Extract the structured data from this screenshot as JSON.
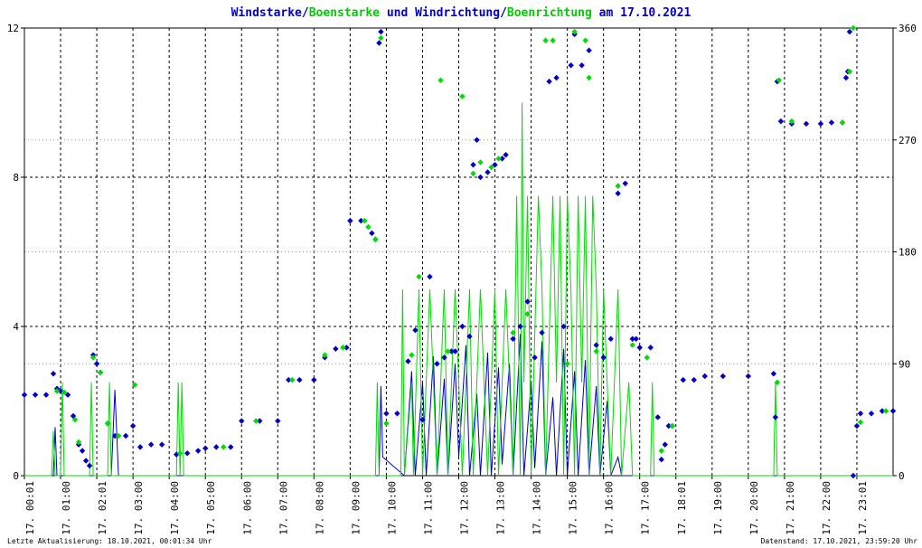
{
  "title_parts": {
    "p1": "Windstarke",
    "p2": "/",
    "p3": "Boenstarke",
    "p4": " und ",
    "p5": "Windrichtung",
    "p6": "/",
    "p7": "Boenrichtung",
    "p8": " am 17.10.2021"
  },
  "footer": {
    "left": "Letzte Aktualisierung: 18.10.2021, 00:01:34 Uhr",
    "right": "Datenstand: 17.10.2021, 23:59:20 Uhr"
  },
  "colors": {
    "wind": "#0000cc",
    "gust": "#00dd00",
    "grid": "#000000"
  },
  "chart_data": {
    "type": "line",
    "x_unit": "hour of day",
    "xlim": [
      0,
      24
    ],
    "x_tick_labels": [
      "17. 00:01",
      "17. 01:00",
      "17. 02:01",
      "17. 03:00",
      "17. 04:00",
      "17. 05:00",
      "17. 06:00",
      "17. 07:00",
      "17. 08:00",
      "17. 09:00",
      "17. 10:00",
      "17. 11:00",
      "17. 12:00",
      "17. 13:00",
      "17. 14:00",
      "17. 15:00",
      "17. 16:00",
      "17. 17:00",
      "17. 18:01",
      "17. 19:00",
      "17. 20:00",
      "17. 21:00",
      "17. 22:00",
      "17. 23:01"
    ],
    "y_left": {
      "ylim": [
        0,
        12
      ],
      "ticks": [
        "0",
        "4",
        "8",
        "12"
      ]
    },
    "y_right": {
      "ylim": [
        0,
        360
      ],
      "ticks": [
        "0",
        "90",
        "180",
        "270",
        "360"
      ]
    },
    "series": [
      {
        "name": "Windstarke",
        "axis": "left",
        "style": "line",
        "color": "#0000cc",
        "points": [
          [
            0,
            0
          ],
          [
            0.8,
            0
          ],
          [
            0.85,
            1.3
          ],
          [
            0.9,
            0
          ],
          [
            2.4,
            0
          ],
          [
            2.5,
            2.3
          ],
          [
            2.6,
            0
          ],
          [
            9.8,
            0
          ],
          [
            9.85,
            2.4
          ],
          [
            9.9,
            0.5
          ],
          [
            10.5,
            0
          ],
          [
            10.7,
            2.8
          ],
          [
            10.8,
            0
          ],
          [
            11.0,
            2.5
          ],
          [
            11.1,
            0
          ],
          [
            11.3,
            3.2
          ],
          [
            11.4,
            0
          ],
          [
            11.6,
            2.6
          ],
          [
            11.7,
            0
          ],
          [
            11.9,
            3.0
          ],
          [
            12.0,
            0.5
          ],
          [
            12.2,
            3.5
          ],
          [
            12.3,
            0
          ],
          [
            12.5,
            2.2
          ],
          [
            12.6,
            0
          ],
          [
            12.8,
            3.3
          ],
          [
            12.9,
            0
          ],
          [
            13.1,
            2.9
          ],
          [
            13.2,
            0.3
          ],
          [
            13.4,
            3.0
          ],
          [
            13.5,
            0
          ],
          [
            13.7,
            3.8
          ],
          [
            13.8,
            0
          ],
          [
            14.0,
            2.5
          ],
          [
            14.1,
            0.2
          ],
          [
            14.3,
            3.6
          ],
          [
            14.4,
            0
          ],
          [
            14.6,
            2.1
          ],
          [
            14.7,
            0
          ],
          [
            14.9,
            3.4
          ],
          [
            15.0,
            0
          ],
          [
            15.2,
            2.8
          ],
          [
            15.3,
            0
          ],
          [
            15.5,
            3.1
          ],
          [
            15.6,
            0
          ],
          [
            15.8,
            2.4
          ],
          [
            15.9,
            0
          ],
          [
            16.1,
            2.0
          ],
          [
            16.2,
            0
          ],
          [
            16.4,
            0.5
          ],
          [
            16.5,
            0
          ],
          [
            24,
            0
          ]
        ]
      },
      {
        "name": "Boenstarke",
        "axis": "left",
        "style": "line",
        "color": "#00dd00",
        "points": [
          [
            0,
            0
          ],
          [
            0.75,
            0
          ],
          [
            0.8,
            1.2
          ],
          [
            0.85,
            0
          ],
          [
            1.0,
            0
          ],
          [
            1.05,
            2.5
          ],
          [
            1.1,
            0
          ],
          [
            1.8,
            0
          ],
          [
            1.85,
            2.5
          ],
          [
            1.9,
            0
          ],
          [
            2.3,
            0
          ],
          [
            2.35,
            2.5
          ],
          [
            2.4,
            0
          ],
          [
            4.2,
            0
          ],
          [
            4.25,
            2.5
          ],
          [
            4.3,
            0
          ],
          [
            4.35,
            2.5
          ],
          [
            4.4,
            0
          ],
          [
            9.7,
            0
          ],
          [
            9.75,
            2.5
          ],
          [
            9.8,
            0
          ],
          [
            10.4,
            0
          ],
          [
            10.45,
            5.0
          ],
          [
            10.5,
            0
          ],
          [
            10.7,
            2.5
          ],
          [
            10.75,
            0
          ],
          [
            10.9,
            5.0
          ],
          [
            11.0,
            0
          ],
          [
            11.2,
            5.0
          ],
          [
            11.3,
            2.5
          ],
          [
            11.4,
            0
          ],
          [
            11.6,
            5.0
          ],
          [
            11.7,
            0
          ],
          [
            11.9,
            5.0
          ],
          [
            12.0,
            2.5
          ],
          [
            12.1,
            0
          ],
          [
            12.3,
            5.0
          ],
          [
            12.4,
            0
          ],
          [
            12.6,
            5.0
          ],
          [
            12.7,
            2.5
          ],
          [
            12.8,
            0
          ],
          [
            13.0,
            5.0
          ],
          [
            13.1,
            0
          ],
          [
            13.3,
            5.0
          ],
          [
            13.4,
            2.5
          ],
          [
            13.5,
            0
          ],
          [
            13.6,
            7.5
          ],
          [
            13.7,
            0
          ],
          [
            13.75,
            10.0
          ],
          [
            13.8,
            2.5
          ],
          [
            13.9,
            7.5
          ],
          [
            14.0,
            0
          ],
          [
            14.2,
            7.5
          ],
          [
            14.3,
            5.0
          ],
          [
            14.4,
            0
          ],
          [
            14.6,
            7.5
          ],
          [
            14.7,
            2.5
          ],
          [
            14.8,
            7.5
          ],
          [
            14.9,
            0
          ],
          [
            15.0,
            7.5
          ],
          [
            15.1,
            5.0
          ],
          [
            15.2,
            0
          ],
          [
            15.3,
            7.5
          ],
          [
            15.4,
            2.5
          ],
          [
            15.5,
            7.5
          ],
          [
            15.6,
            0
          ],
          [
            15.7,
            7.5
          ],
          [
            15.8,
            5.0
          ],
          [
            15.9,
            0
          ],
          [
            16.0,
            5.0
          ],
          [
            16.1,
            2.5
          ],
          [
            16.2,
            0
          ],
          [
            16.4,
            5.0
          ],
          [
            16.5,
            0
          ],
          [
            16.7,
            2.5
          ],
          [
            16.8,
            0
          ],
          [
            17.3,
            0
          ],
          [
            17.35,
            2.5
          ],
          [
            17.4,
            0
          ],
          [
            20.7,
            0
          ],
          [
            20.75,
            2.5
          ],
          [
            20.8,
            0
          ],
          [
            24,
            0
          ]
        ]
      },
      {
        "name": "Windrichtung",
        "axis": "right",
        "style": "points",
        "color": "#0000cc",
        "points": [
          [
            0.0,
            65
          ],
          [
            0.3,
            65
          ],
          [
            0.6,
            65
          ],
          [
            0.8,
            82
          ],
          [
            0.9,
            70
          ],
          [
            1.0,
            68
          ],
          [
            1.2,
            65
          ],
          [
            1.35,
            48
          ],
          [
            1.5,
            25
          ],
          [
            1.6,
            20
          ],
          [
            1.7,
            12
          ],
          [
            1.8,
            8
          ],
          [
            1.9,
            97
          ],
          [
            2.0,
            90
          ],
          [
            2.1,
            83
          ],
          [
            2.3,
            42
          ],
          [
            2.5,
            32
          ],
          [
            2.8,
            32
          ],
          [
            3.0,
            40
          ],
          [
            3.2,
            23
          ],
          [
            3.5,
            25
          ],
          [
            3.8,
            25
          ],
          [
            4.2,
            17
          ],
          [
            4.5,
            18
          ],
          [
            4.8,
            20
          ],
          [
            5.0,
            22
          ],
          [
            5.3,
            23
          ],
          [
            5.7,
            23
          ],
          [
            6.0,
            44
          ],
          [
            6.5,
            44
          ],
          [
            7.0,
            44
          ],
          [
            7.3,
            77
          ],
          [
            7.6,
            77
          ],
          [
            8.0,
            77
          ],
          [
            8.3,
            95
          ],
          [
            8.6,
            102
          ],
          [
            8.9,
            103
          ],
          [
            9.0,
            205
          ],
          [
            9.3,
            205
          ],
          [
            9.6,
            195
          ],
          [
            9.7,
            190
          ],
          [
            9.8,
            348
          ],
          [
            9.85,
            357
          ],
          [
            10.0,
            50
          ],
          [
            10.3,
            50
          ],
          [
            10.6,
            92
          ],
          [
            10.8,
            117
          ],
          [
            11.0,
            45
          ],
          [
            11.2,
            160
          ],
          [
            11.4,
            90
          ],
          [
            11.6,
            95
          ],
          [
            11.8,
            100
          ],
          [
            11.9,
            100
          ],
          [
            12.1,
            120
          ],
          [
            12.3,
            112
          ],
          [
            12.4,
            250
          ],
          [
            12.5,
            270
          ],
          [
            12.6,
            240
          ],
          [
            12.8,
            244
          ],
          [
            13.0,
            250
          ],
          [
            13.2,
            255
          ],
          [
            13.3,
            258
          ],
          [
            13.5,
            110
          ],
          [
            13.7,
            120
          ],
          [
            13.9,
            140
          ],
          [
            14.1,
            95
          ],
          [
            14.3,
            115
          ],
          [
            14.5,
            317
          ],
          [
            14.7,
            320
          ],
          [
            14.9,
            120
          ],
          [
            15.1,
            330
          ],
          [
            15.2,
            355
          ],
          [
            15.4,
            330
          ],
          [
            15.6,
            342
          ],
          [
            15.8,
            105
          ],
          [
            16.0,
            95
          ],
          [
            16.2,
            110
          ],
          [
            16.4,
            227
          ],
          [
            16.6,
            235
          ],
          [
            16.8,
            110
          ],
          [
            16.9,
            110
          ],
          [
            17.0,
            103
          ],
          [
            17.3,
            103
          ],
          [
            17.5,
            47
          ],
          [
            17.6,
            13
          ],
          [
            17.7,
            25
          ],
          [
            17.8,
            40
          ],
          [
            17.9,
            40
          ],
          [
            18.2,
            77
          ],
          [
            18.5,
            77
          ],
          [
            18.8,
            80
          ],
          [
            19.3,
            80
          ],
          [
            20.0,
            80
          ],
          [
            20.7,
            82
          ],
          [
            20.75,
            47
          ],
          [
            20.8,
            317
          ],
          [
            20.9,
            285
          ],
          [
            21.2,
            283
          ],
          [
            21.6,
            283
          ],
          [
            22.0,
            283
          ],
          [
            22.3,
            284
          ],
          [
            22.6,
            284
          ],
          [
            22.7,
            320
          ],
          [
            22.75,
            325
          ],
          [
            22.8,
            357
          ],
          [
            22.9,
            0
          ],
          [
            23.0,
            40
          ],
          [
            23.1,
            50
          ],
          [
            23.4,
            50
          ],
          [
            23.7,
            52
          ],
          [
            24.0,
            52
          ]
        ]
      },
      {
        "name": "Boenrichtung",
        "axis": "right",
        "style": "points",
        "color": "#00dd00",
        "points": [
          [
            0.9,
            68
          ],
          [
            1.1,
            67
          ],
          [
            1.4,
            45
          ],
          [
            1.5,
            27
          ],
          [
            1.9,
            95
          ],
          [
            2.1,
            83
          ],
          [
            2.3,
            42
          ],
          [
            2.6,
            32
          ],
          [
            3.05,
            73
          ],
          [
            4.3,
            18
          ],
          [
            5.5,
            23
          ],
          [
            6.4,
            44
          ],
          [
            7.4,
            77
          ],
          [
            8.3,
            97
          ],
          [
            8.8,
            103
          ],
          [
            9.4,
            205
          ],
          [
            9.5,
            200
          ],
          [
            9.7,
            190
          ],
          [
            9.85,
            352
          ],
          [
            10.0,
            42
          ],
          [
            10.7,
            97
          ],
          [
            10.9,
            160
          ],
          [
            11.5,
            318
          ],
          [
            11.7,
            100
          ],
          [
            12.1,
            305
          ],
          [
            12.4,
            243
          ],
          [
            12.6,
            252
          ],
          [
            12.9,
            248
          ],
          [
            13.1,
            255
          ],
          [
            13.5,
            115
          ],
          [
            13.9,
            130
          ],
          [
            14.4,
            350
          ],
          [
            14.6,
            350
          ],
          [
            15.0,
            90
          ],
          [
            15.2,
            357
          ],
          [
            15.5,
            350
          ],
          [
            15.6,
            320
          ],
          [
            15.8,
            100
          ],
          [
            16.4,
            233
          ],
          [
            16.8,
            105
          ],
          [
            17.2,
            95
          ],
          [
            17.6,
            20
          ],
          [
            17.9,
            40
          ],
          [
            20.8,
            75
          ],
          [
            20.85,
            318
          ],
          [
            21.2,
            285
          ],
          [
            22.6,
            284
          ],
          [
            22.8,
            325
          ],
          [
            22.9,
            360
          ],
          [
            23.1,
            43
          ],
          [
            23.8,
            52
          ]
        ]
      }
    ]
  }
}
